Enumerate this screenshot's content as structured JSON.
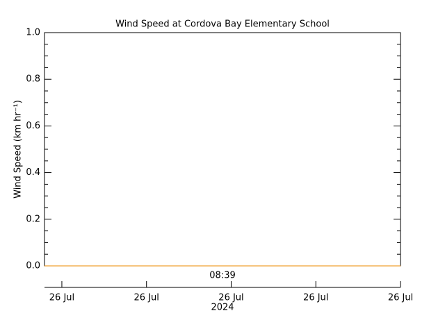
{
  "chart_data": {
    "type": "line",
    "title": "Wind Speed at Cordova Bay Elementary School",
    "ylabel": "Wind Speed (km hr⁻¹)",
    "xlabel": "2024",
    "annotations": [
      "08:39"
    ],
    "series": [
      {
        "name": "Wind Speed",
        "color": "#f0a030",
        "x": [
          -1.23,
          24
        ],
        "values": [
          0,
          0
        ]
      }
    ],
    "xlim": [
      -1.23,
      24
    ],
    "xticks": [
      {
        "value": 0,
        "label": "26 Jul"
      },
      {
        "value": 6,
        "label": "26 Jul"
      },
      {
        "value": 12,
        "label": "26 Jul"
      },
      {
        "value": 18,
        "label": "26 Jul"
      },
      {
        "value": 24,
        "label": "26 Jul"
      }
    ],
    "ylim": [
      0,
      1
    ],
    "yticks": [
      {
        "value": 0,
        "label": "0.0"
      },
      0.2,
      0.4,
      0.6,
      0.8,
      {
        "value": 1,
        "label": "1.0"
      }
    ],
    "yminorticks": [
      0.05,
      0.1,
      0.15,
      0.25,
      0.3,
      0.35,
      0.45,
      0.5,
      0.55,
      0.65,
      0.7,
      0.75,
      0.85,
      0.9,
      0.95
    ],
    "grid": false
  }
}
